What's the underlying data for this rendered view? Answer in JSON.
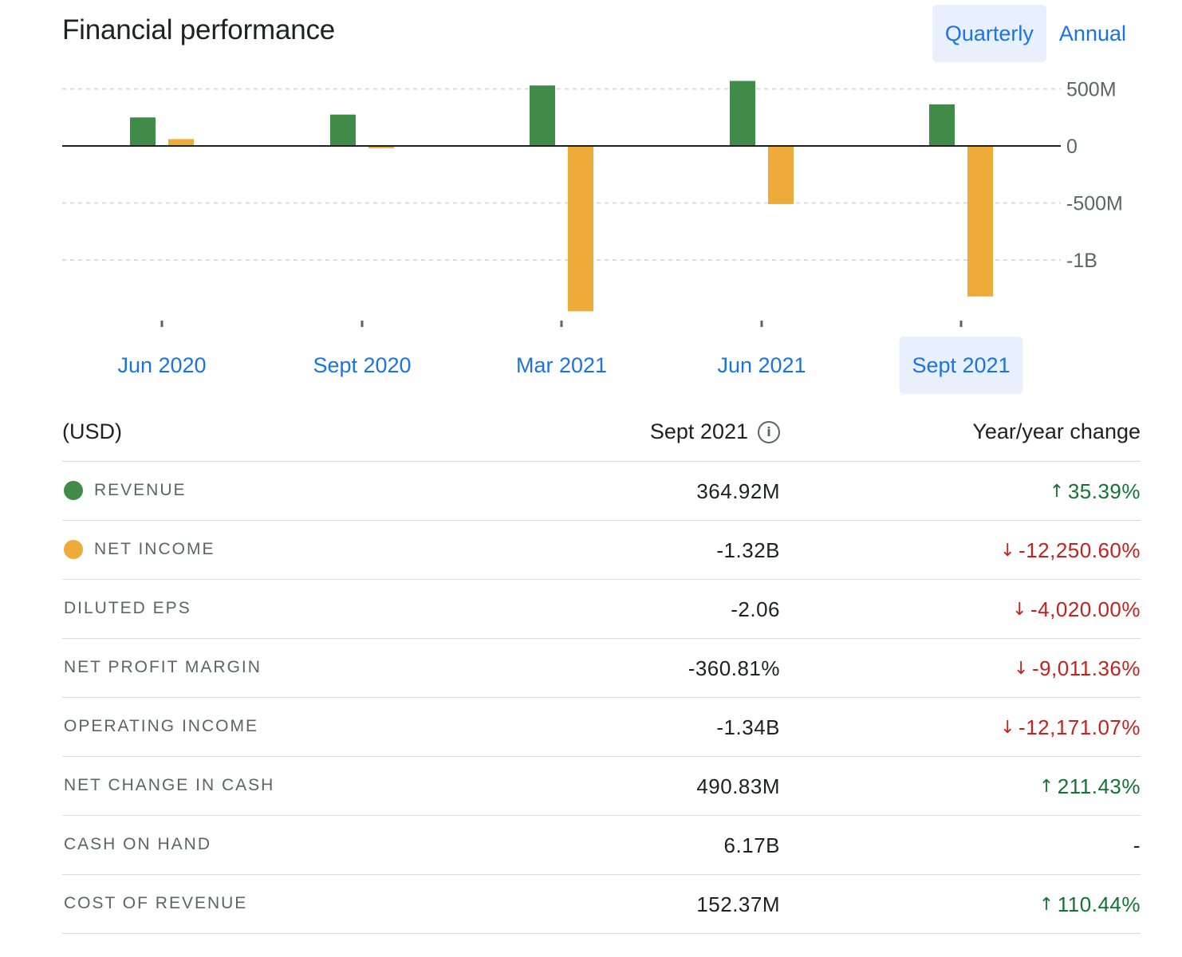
{
  "header": {
    "title": "Financial performance",
    "toggle": [
      {
        "label": "Quarterly",
        "active": true
      },
      {
        "label": "Annual",
        "active": false
      }
    ]
  },
  "colors": {
    "revenue": "#3f8b47",
    "net_income": "#eeab3a",
    "accent": "#1a73e8",
    "positive": "#137333",
    "negative": "#c5221f"
  },
  "chart_data": {
    "type": "bar",
    "categories": [
      "Jun 2020",
      "Sept 2020",
      "Mar 2021",
      "Jun 2021",
      "Sept 2021"
    ],
    "selected_category": "Sept 2021",
    "series": [
      {
        "name": "REVENUE",
        "values": [
          250000000,
          275000000,
          530000000,
          570000000,
          364920000
        ]
      },
      {
        "name": "NET INCOME",
        "values": [
          60000000,
          -20000000,
          -1450000000,
          -510000000,
          -1320000000
        ]
      }
    ],
    "y_ticks": [
      {
        "value": 500000000,
        "label": "500M"
      },
      {
        "value": 0,
        "label": "0"
      },
      {
        "value": -500000000,
        "label": "-500M"
      },
      {
        "value": -1000000000,
        "label": "-1B"
      }
    ],
    "grid": true,
    "axis_position": "right"
  },
  "table": {
    "unit_label": "(USD)",
    "period_label": "Sept 2021",
    "info_icon_glyph": "i",
    "change_label": "Year/year change",
    "rows": [
      {
        "label": "REVENUE",
        "value": "364.92M",
        "change": "35.39%",
        "dir": "up",
        "dot": "revenue"
      },
      {
        "label": "NET INCOME",
        "value": "-1.32B",
        "change": "-12,250.60%",
        "dir": "down",
        "dot": "net_income"
      },
      {
        "label": "DILUTED EPS",
        "value": "-2.06",
        "change": "-4,020.00%",
        "dir": "down"
      },
      {
        "label": "NET PROFIT MARGIN",
        "value": "-360.81%",
        "change": "-9,011.36%",
        "dir": "down"
      },
      {
        "label": "OPERATING INCOME",
        "value": "-1.34B",
        "change": "-12,171.07%",
        "dir": "down"
      },
      {
        "label": "NET CHANGE IN CASH",
        "value": "490.83M",
        "change": "211.43%",
        "dir": "up"
      },
      {
        "label": "CASH ON HAND",
        "value": "6.17B",
        "change": "-",
        "dir": "flat"
      },
      {
        "label": "COST OF REVENUE",
        "value": "152.37M",
        "change": "110.44%",
        "dir": "up"
      }
    ]
  }
}
